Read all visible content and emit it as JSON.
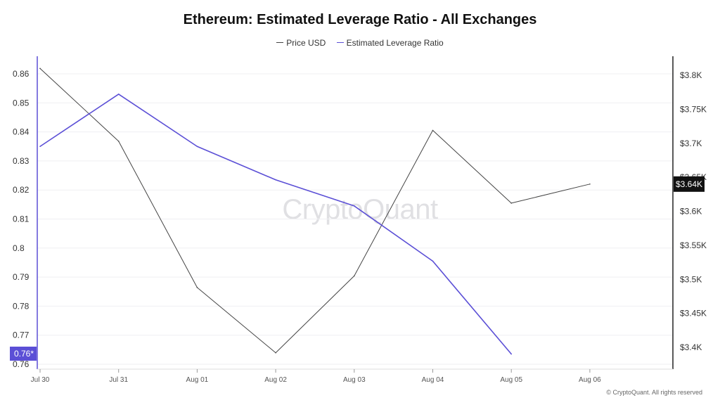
{
  "chart_data": {
    "type": "line",
    "title": "Ethereum: Estimated Leverage Ratio - All Exchanges",
    "categories": [
      "Jul 30",
      "Jul 31",
      "Aug 01",
      "Aug 02",
      "Aug 03",
      "Aug 04",
      "Aug 05",
      "Aug 06"
    ],
    "series": [
      {
        "name": "Price USD",
        "axis": "right",
        "color": "#444444",
        "values": [
          3810,
          3703,
          3488,
          3392,
          3505,
          3719,
          3612,
          3640
        ]
      },
      {
        "name": "Estimated Leverage Ratio",
        "axis": "left",
        "color": "#5b4fd6",
        "values": [
          0.835,
          0.853,
          0.835,
          0.8235,
          0.8145,
          0.7955,
          0.7635,
          null
        ]
      }
    ],
    "left_axis": {
      "ticks": [
        "0.76",
        "0.77",
        "0.78",
        "0.79",
        "0.8",
        "0.81",
        "0.82",
        "0.83",
        "0.84",
        "0.85",
        "0.86"
      ],
      "range": [
        0.76,
        0.86
      ],
      "current_label": "0.76*"
    },
    "right_axis": {
      "ticks": [
        "$3.4K",
        "$3.45K",
        "$3.5K",
        "$3.55K",
        "$3.6K",
        "$3.65K",
        "$3.7K",
        "$3.75K",
        "$3.8K"
      ],
      "range": [
        3400,
        3800
      ],
      "current_label": "$3.64K"
    },
    "grid": "horizontal",
    "legend_position": "top-center"
  },
  "watermark": "CryptoQuant",
  "copyright": "© CryptoQuant. All rights reserved"
}
